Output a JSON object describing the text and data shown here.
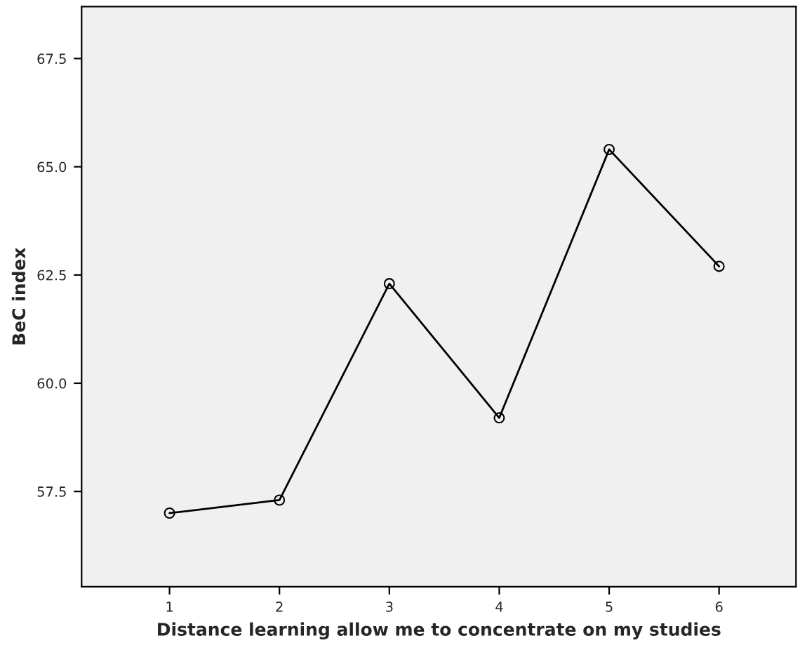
{
  "chart_data": {
    "type": "line",
    "xlabel": "Distance learning allow me to concentrate on my studies",
    "ylabel": "BeC index",
    "x": [
      1,
      2,
      3,
      4,
      5,
      6
    ],
    "series": [
      {
        "color": "#000000",
        "values": [
          57.0,
          57.3,
          62.3,
          59.2,
          65.4,
          62.7
        ]
      }
    ],
    "xlim": [
      0.2,
      6.7
    ],
    "xticks": [
      1,
      2,
      3,
      4,
      5,
      6
    ],
    "ylim": [
      55.3,
      68.7
    ],
    "yticks": [
      {
        "value": 57.5,
        "label": "57.5"
      },
      {
        "value": 60,
        "label": "60.0"
      },
      {
        "value": 62.5,
        "label": "62.5"
      },
      {
        "value": 65,
        "label": "65.0"
      },
      {
        "value": 67.5,
        "label": "67.5"
      }
    ],
    "marker": "circle",
    "line_style": "solid",
    "grid": false,
    "legend": false
  }
}
